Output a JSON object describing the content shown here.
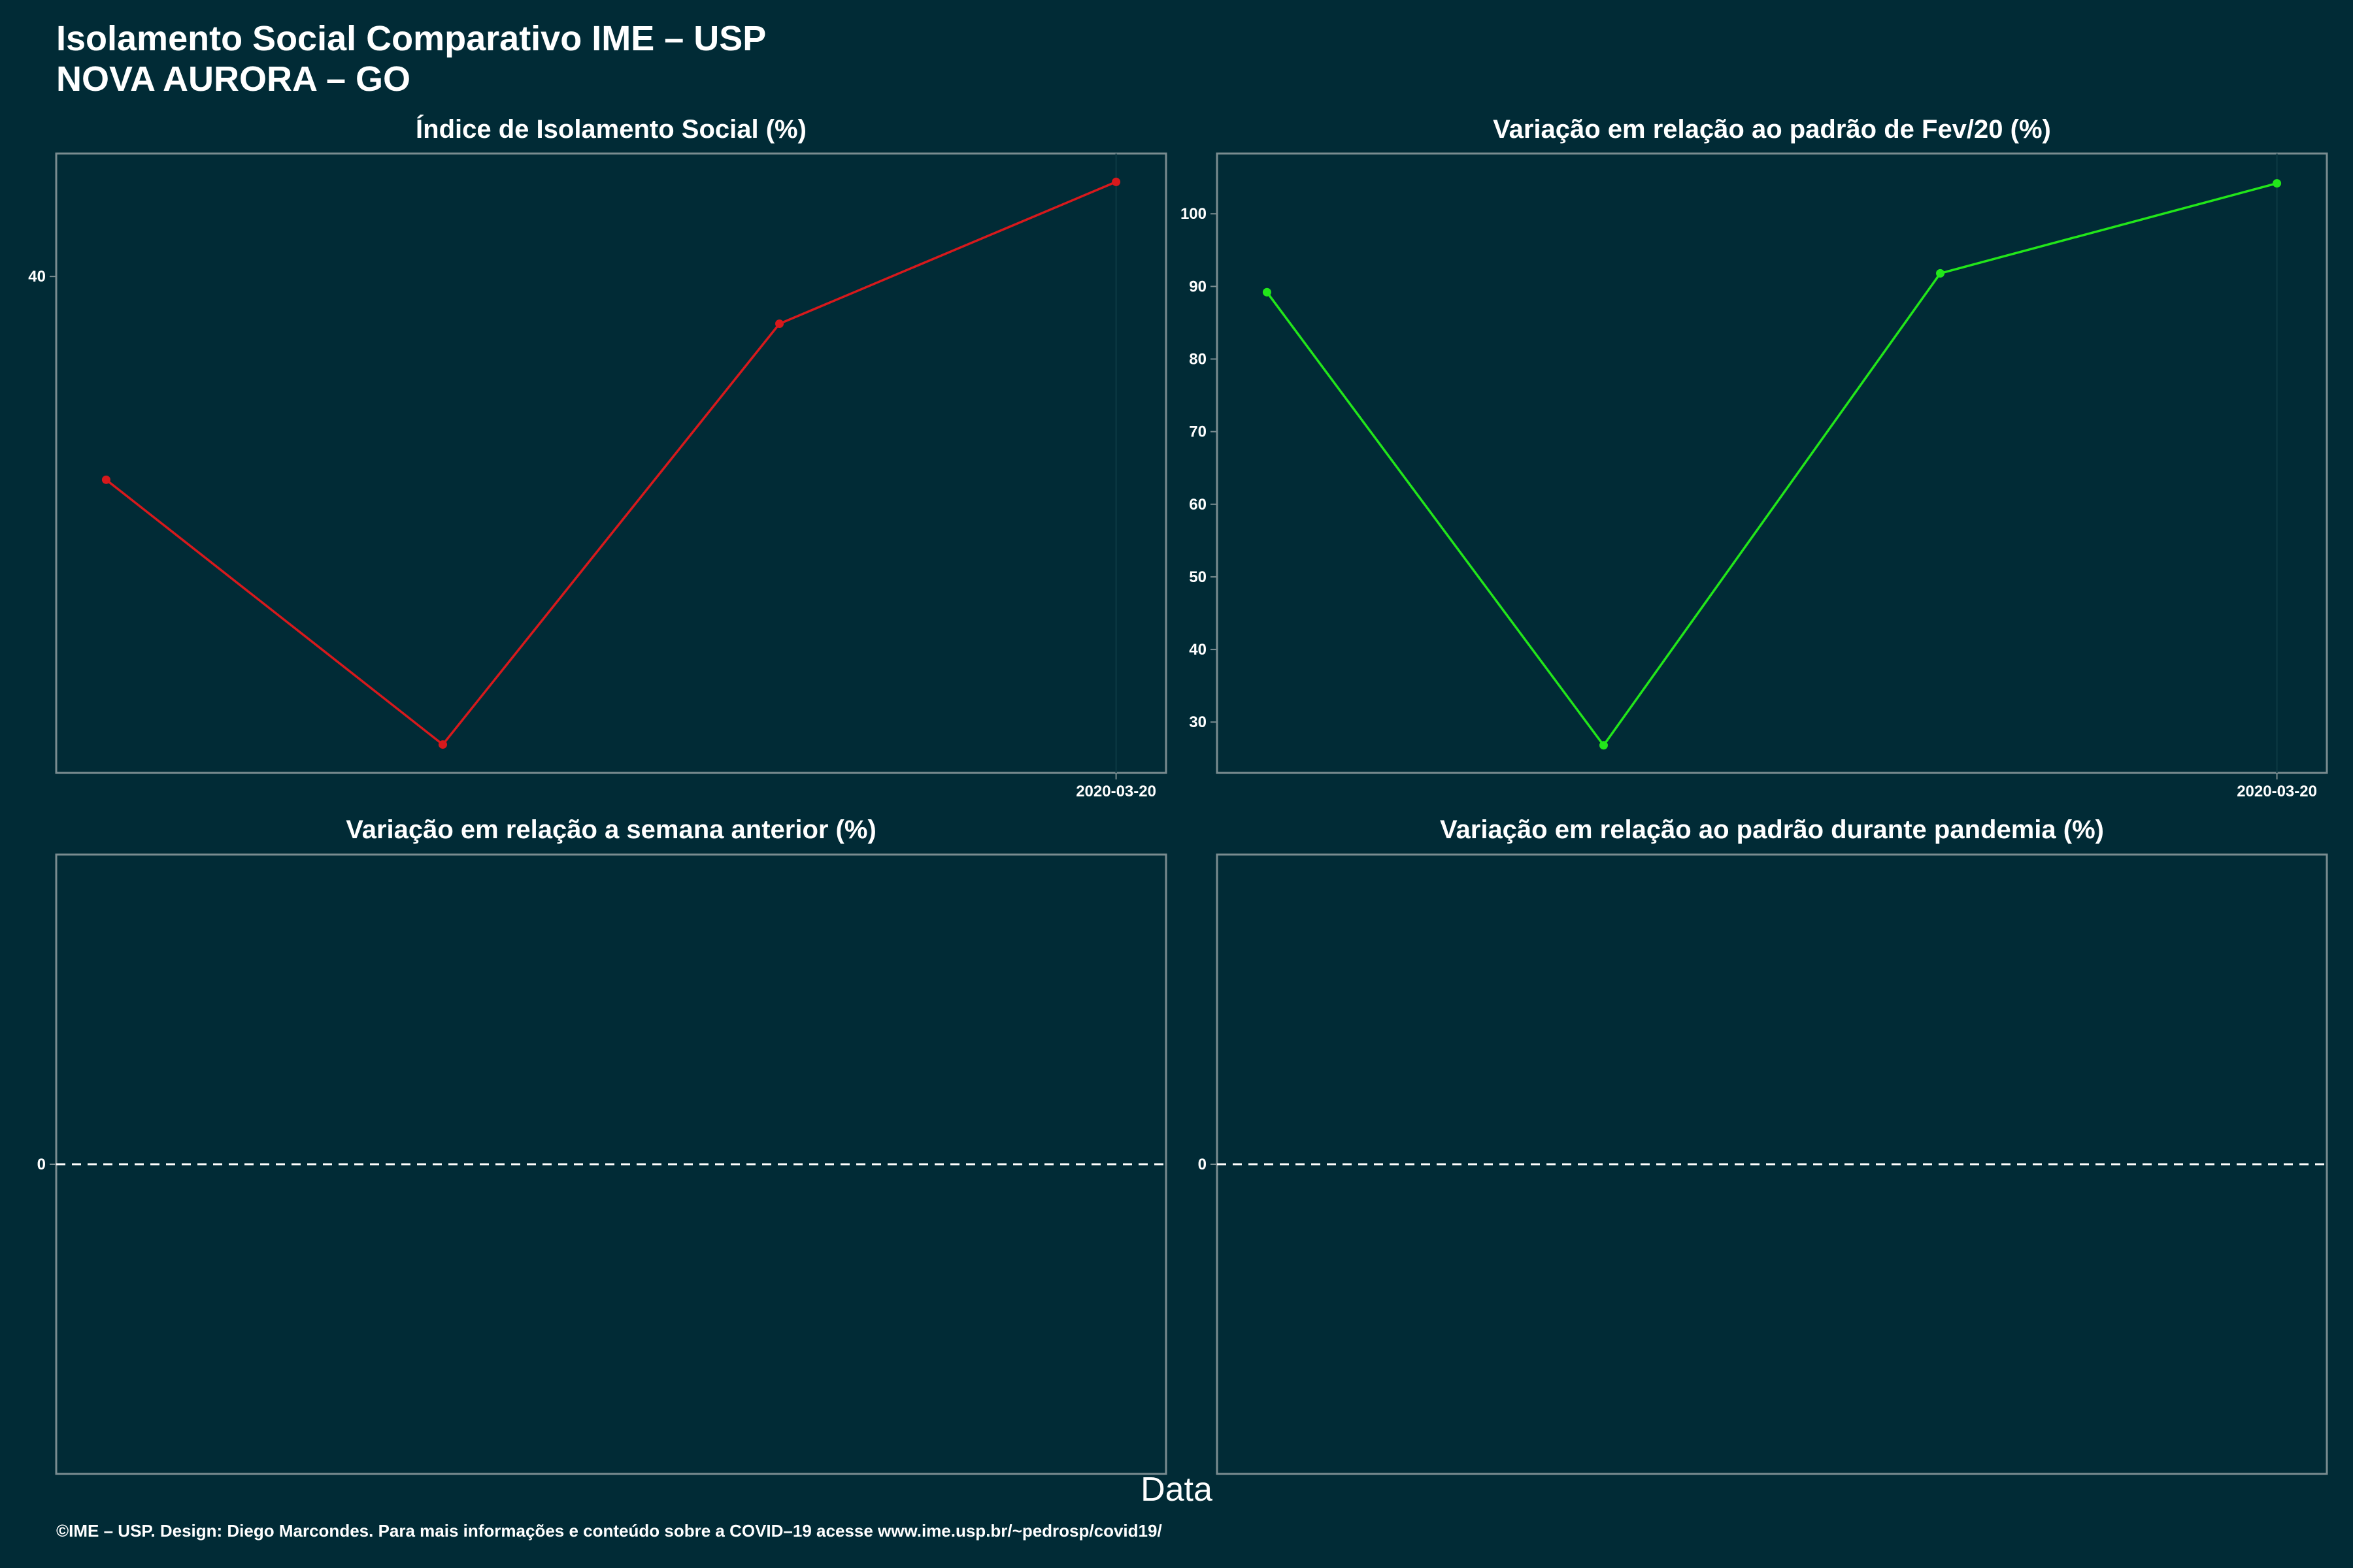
{
  "header": {
    "title_line1": "Isolamento Social Comparativo IME – USP",
    "title_line2": "NOVA AURORA – GO"
  },
  "xaxis_title": "Data",
  "footer": "©IME – USP. Design: Diego Marcondes. Para mais informações e conteúdo sobre a COVID–19 acesse www.ime.usp.br/~pedrosp/covid19/",
  "colors": {
    "background": "#012b36",
    "frame": "#7a8c90",
    "series_isolamento": "#d7191c",
    "series_fev": "#22e61a",
    "reference_line": "#ffffff"
  },
  "chart_data": [
    {
      "type": "line",
      "title": "Índice de Isolamento Social (%)",
      "x": [
        "2020-03-17",
        "2020-03-18",
        "2020-03-19",
        "2020-03-20"
      ],
      "values": [
        35.7,
        30.1,
        39.0,
        42.0
      ],
      "xticks": [
        "2020-03-20"
      ],
      "yticks": [
        40
      ],
      "ylim": [
        29.5,
        42.6
      ],
      "color": "#d7191c"
    },
    {
      "type": "line",
      "title": "Variação em relação ao padrão de Fev/20 (%)",
      "x": [
        "2020-03-17",
        "2020-03-18",
        "2020-03-19",
        "2020-03-20"
      ],
      "values": [
        89.2,
        26.8,
        91.8,
        104.2
      ],
      "xticks": [
        "2020-03-20"
      ],
      "yticks": [
        30,
        40,
        50,
        60,
        70,
        80,
        90,
        100
      ],
      "ylim": [
        23,
        108.3
      ],
      "color": "#22e61a"
    },
    {
      "type": "line",
      "title": "Variação em relação a semana anterior (%)",
      "x": [],
      "values": [],
      "xticks": [],
      "yticks": [
        0
      ],
      "ylim": [
        -1,
        1
      ],
      "reference_line": 0,
      "color": "#ffffff"
    },
    {
      "type": "line",
      "title": "Variação em relação ao padrão durante pandemia (%)",
      "x": [],
      "values": [],
      "xticks": [],
      "yticks": [
        0
      ],
      "ylim": [
        -1,
        1
      ],
      "reference_line": 0,
      "color": "#ffffff"
    }
  ]
}
